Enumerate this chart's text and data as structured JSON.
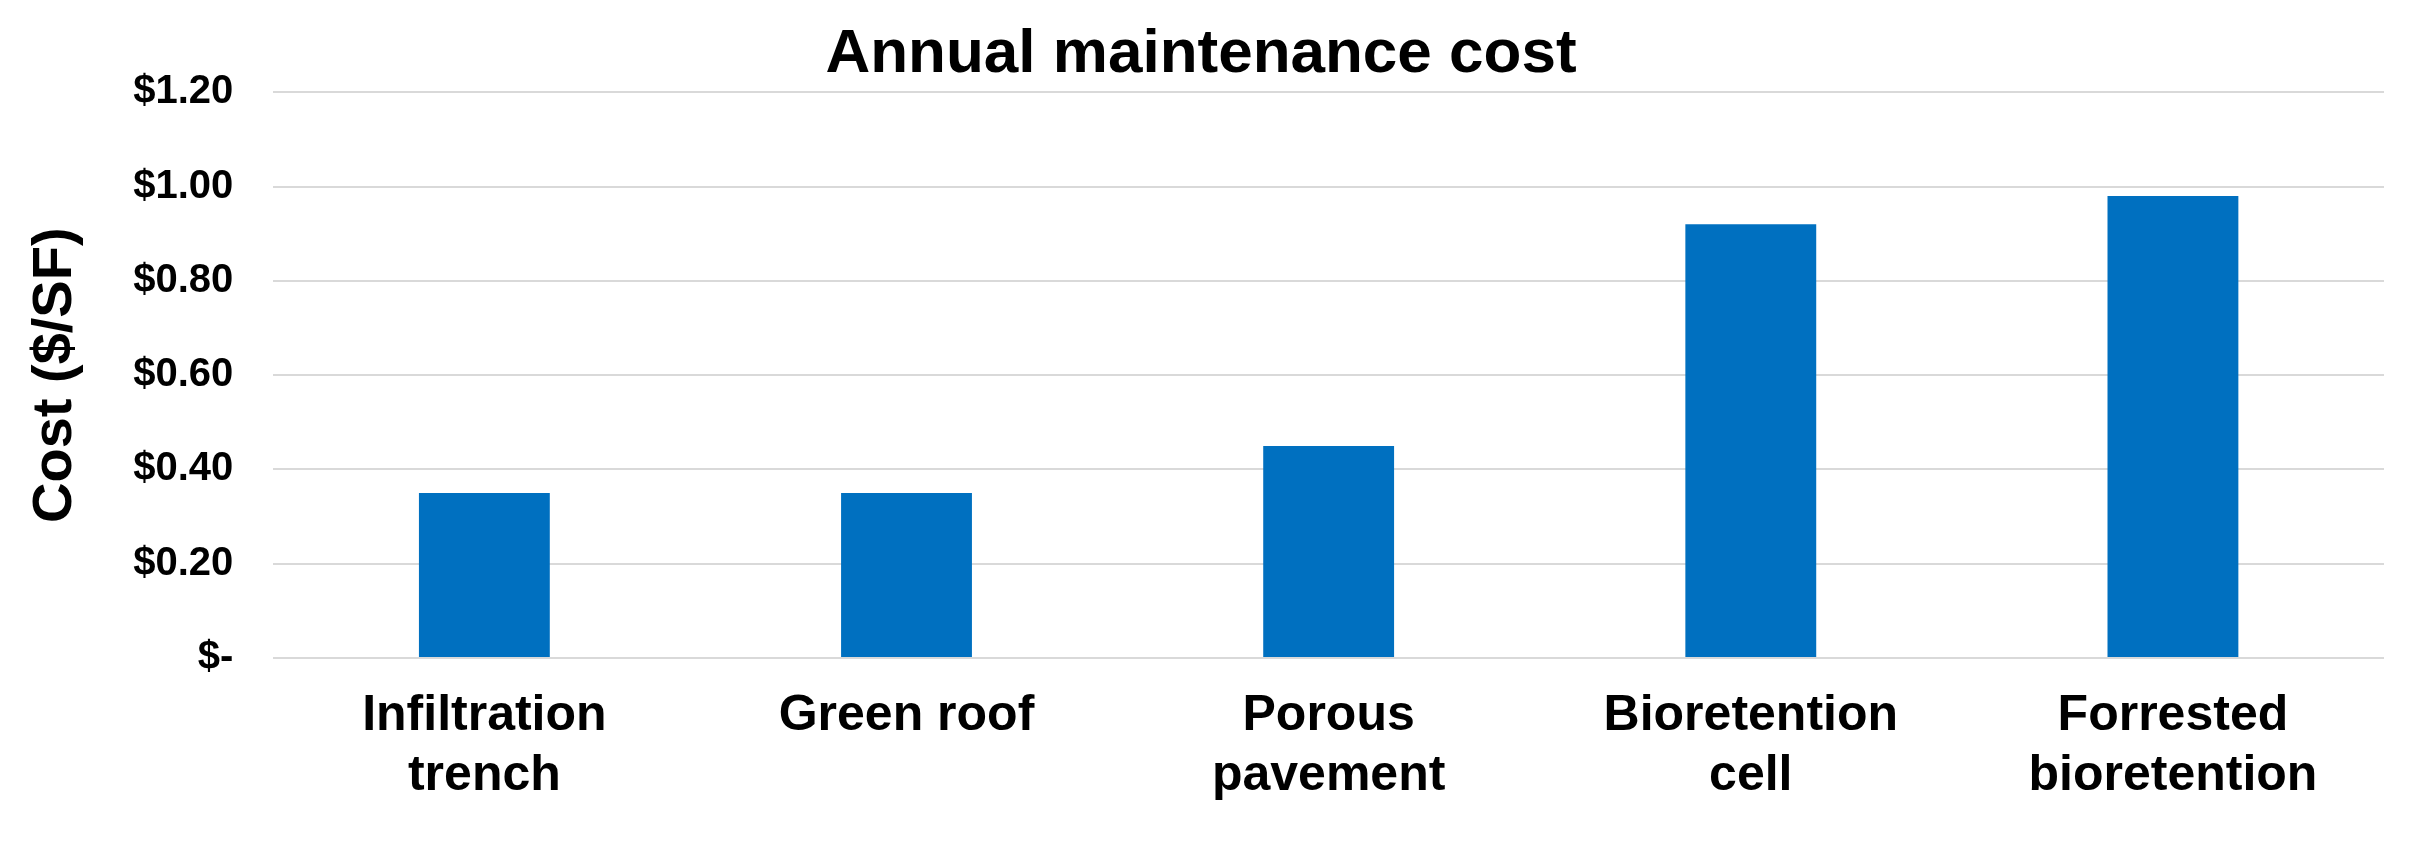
{
  "chart_data": {
    "type": "bar",
    "title": "Annual maintenance cost",
    "ylabel": "Cost ($/SF)",
    "categories": [
      "Infiltration trench",
      "Green roof",
      "Porous pavement",
      "Bioretention cell",
      "Forrested bioretention"
    ],
    "values": [
      0.35,
      0.35,
      0.45,
      0.92,
      0.98
    ],
    "color": "#0070c0",
    "ylim": [
      0,
      1.2
    ],
    "yticks": [
      {
        "value": 0,
        "label": "$-"
      },
      {
        "value": 0.2,
        "label": "$0.20"
      },
      {
        "value": 0.4,
        "label": "$0.40"
      },
      {
        "value": 0.6,
        "label": "$0.60"
      },
      {
        "value": 0.8,
        "label": "$0.80"
      },
      {
        "value": 1.0,
        "label": "$1.00"
      },
      {
        "value": 1.2,
        "label": "$1.20"
      }
    ],
    "grid": "y",
    "legend": false
  }
}
